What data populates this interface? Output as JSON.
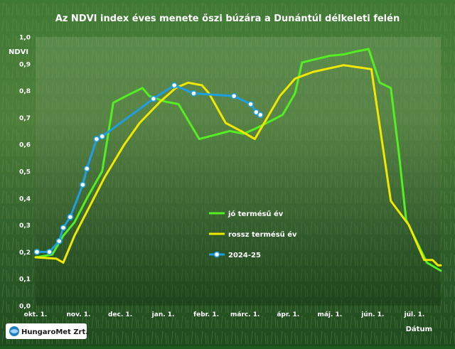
{
  "chart_data": {
    "type": "line",
    "title": "Az NDVI index éves menete őszi búzára a Dunántúl délkeleti felén",
    "ylabel": "NDVI",
    "xlabel": "Dátum",
    "ylim": [
      0,
      1
    ],
    "y_ticks": [
      "0,0",
      "0,1",
      "0,2",
      "0,3",
      "0,4",
      "0,5",
      "0,6",
      "0,7",
      "0,8",
      "0,9",
      "1,0"
    ],
    "x_ticks": [
      {
        "label": "okt. 1.",
        "day": 0
      },
      {
        "label": "nov. 1.",
        "day": 31
      },
      {
        "label": "dec. 1.",
        "day": 61
      },
      {
        "label": "jan. 1.",
        "day": 92
      },
      {
        "label": "febr. 1.",
        "day": 123
      },
      {
        "label": "márc. 1.",
        "day": 151
      },
      {
        "label": "ápr. 1.",
        "day": 182
      },
      {
        "label": "máj. 1.",
        "day": 212
      },
      {
        "label": "jún. 1.",
        "day": 243
      },
      {
        "label": "júl. 1.",
        "day": 273
      }
    ],
    "x_range_days": [
      0,
      292
    ],
    "grid": false,
    "legend_position": "lower-right",
    "series": [
      {
        "name": "jó termésű év",
        "color": "#55ee22",
        "markers": false,
        "points": [
          [
            0,
            0.18
          ],
          [
            12,
            0.19
          ],
          [
            20,
            0.26
          ],
          [
            28,
            0.31
          ],
          [
            37,
            0.4
          ],
          [
            48,
            0.5
          ],
          [
            56,
            0.755
          ],
          [
            67,
            0.785
          ],
          [
            77,
            0.81
          ],
          [
            82,
            0.78
          ],
          [
            93,
            0.76
          ],
          [
            103,
            0.75
          ],
          [
            118,
            0.62
          ],
          [
            140,
            0.65
          ],
          [
            150,
            0.64
          ],
          [
            159,
            0.66
          ],
          [
            178,
            0.71
          ],
          [
            187,
            0.79
          ],
          [
            192,
            0.905
          ],
          [
            212,
            0.93
          ],
          [
            222,
            0.935
          ],
          [
            230,
            0.945
          ],
          [
            240,
            0.955
          ],
          [
            248,
            0.83
          ],
          [
            256,
            0.81
          ],
          [
            262,
            0.56
          ],
          [
            267,
            0.32
          ],
          [
            282,
            0.16
          ],
          [
            292,
            0.13
          ]
        ]
      },
      {
        "name": "rossz termésű év",
        "color": "#f0e800",
        "markers": false,
        "points": [
          [
            0,
            0.18
          ],
          [
            15,
            0.175
          ],
          [
            20,
            0.16
          ],
          [
            28,
            0.26
          ],
          [
            40,
            0.38
          ],
          [
            50,
            0.48
          ],
          [
            64,
            0.6
          ],
          [
            75,
            0.68
          ],
          [
            90,
            0.76
          ],
          [
            101,
            0.81
          ],
          [
            110,
            0.83
          ],
          [
            120,
            0.82
          ],
          [
            125,
            0.79
          ],
          [
            137,
            0.68
          ],
          [
            148,
            0.65
          ],
          [
            158,
            0.62
          ],
          [
            176,
            0.78
          ],
          [
            187,
            0.845
          ],
          [
            200,
            0.87
          ],
          [
            222,
            0.895
          ],
          [
            242,
            0.88
          ],
          [
            256,
            0.39
          ],
          [
            269,
            0.3
          ],
          [
            280,
            0.17
          ],
          [
            286,
            0.17
          ],
          [
            290,
            0.15
          ],
          [
            292,
            0.15
          ]
        ]
      },
      {
        "name": "2024-25",
        "color": "#1f9ee0",
        "markers": true,
        "points": [
          [
            1,
            0.2
          ],
          [
            10,
            0.2
          ],
          [
            17,
            0.24
          ],
          [
            20,
            0.29
          ],
          [
            25,
            0.33
          ],
          [
            34,
            0.45
          ],
          [
            37,
            0.51
          ],
          [
            44,
            0.62
          ],
          [
            48,
            0.63
          ],
          [
            85,
            0.77
          ],
          [
            100,
            0.82
          ],
          [
            114,
            0.79
          ],
          [
            143,
            0.78
          ],
          [
            155,
            0.75
          ],
          [
            159,
            0.72
          ],
          [
            162,
            0.71
          ]
        ]
      }
    ]
  },
  "branding": {
    "logo_text": "HungaroMet Zrt."
  }
}
